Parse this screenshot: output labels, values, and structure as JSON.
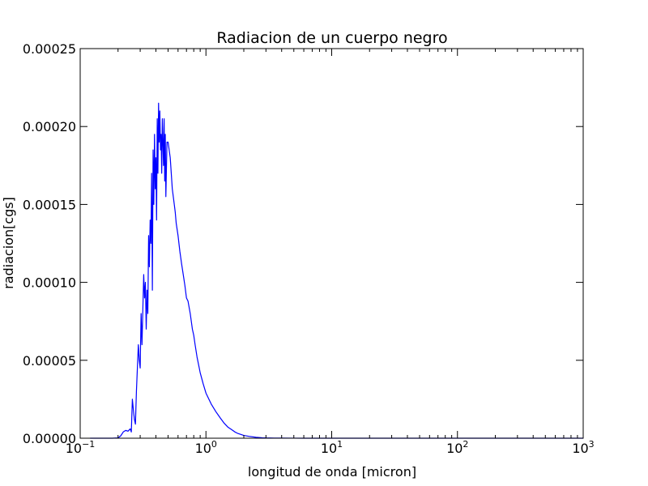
{
  "chart_data": {
    "type": "line",
    "title": "Radiacion de un cuerpo negro",
    "xlabel": "longitud de onda [micron]",
    "ylabel": "radiacion[cgs]",
    "x_scale": "log",
    "y_scale": "linear",
    "xlim": [
      0.1,
      1000
    ],
    "ylim": [
      0,
      0.00025
    ],
    "grid": false,
    "x_ticks": [
      {
        "value": 0.1,
        "base": "10",
        "exp": "−1"
      },
      {
        "value": 1,
        "base": "10",
        "exp": "0"
      },
      {
        "value": 10,
        "base": "10",
        "exp": "1"
      },
      {
        "value": 100,
        "base": "10",
        "exp": "2"
      },
      {
        "value": 1000,
        "base": "10",
        "exp": "3"
      }
    ],
    "y_ticks": [
      {
        "value": 0,
        "label": "0.00000"
      },
      {
        "value": 5e-05,
        "label": "0.00005"
      },
      {
        "value": 0.0001,
        "label": "0.00010"
      },
      {
        "value": 0.00015,
        "label": "0.00015"
      },
      {
        "value": 0.0002,
        "label": "0.00020"
      },
      {
        "value": 0.00025,
        "label": "0.00025"
      }
    ],
    "series": [
      {
        "color": "#0000ff",
        "x": [
          0.12,
          0.15,
          0.18,
          0.2,
          0.21,
          0.22,
          0.23,
          0.24,
          0.25,
          0.255,
          0.26,
          0.265,
          0.27,
          0.275,
          0.28,
          0.29,
          0.295,
          0.3,
          0.305,
          0.31,
          0.32,
          0.325,
          0.33,
          0.335,
          0.34,
          0.345,
          0.35,
          0.355,
          0.36,
          0.365,
          0.37,
          0.375,
          0.38,
          0.385,
          0.39,
          0.395,
          0.4,
          0.405,
          0.41,
          0.415,
          0.42,
          0.425,
          0.43,
          0.435,
          0.44,
          0.445,
          0.45,
          0.455,
          0.46,
          0.465,
          0.47,
          0.475,
          0.48,
          0.49,
          0.5,
          0.51,
          0.52,
          0.53,
          0.54,
          0.55,
          0.56,
          0.57,
          0.58,
          0.6,
          0.62,
          0.64,
          0.66,
          0.68,
          0.7,
          0.72,
          0.75,
          0.78,
          0.8,
          0.82,
          0.85,
          0.88,
          0.9,
          0.95,
          1.0,
          1.1,
          1.2,
          1.3,
          1.4,
          1.5,
          1.6,
          1.7,
          1.8,
          2.0,
          2.2,
          2.5,
          2.8,
          3.0,
          3.5,
          4.0,
          5.0,
          6.0,
          8.0,
          10,
          15,
          20,
          50,
          100,
          1000
        ],
        "y": [
          0,
          0,
          0,
          2e-07,
          1.5e-06,
          4e-06,
          5e-06,
          4.5e-06,
          6e-06,
          4e-06,
          2.5e-05,
          1.8e-05,
          1.2e-05,
          9e-06,
          3e-05,
          6e-05,
          5e-05,
          4.5e-05,
          8e-05,
          6e-05,
          0.000105,
          9e-05,
          0.0001,
          7e-05,
          9.5e-05,
          8e-05,
          0.00013,
          0.00011,
          0.00014,
          0.000125,
          0.00017,
          9.5e-05,
          0.000185,
          0.00015,
          0.000195,
          0.00016,
          0.00018,
          0.00014,
          0.000205,
          0.00017,
          0.000215,
          0.00019,
          0.00021,
          0.000185,
          0.000195,
          0.00017,
          0.000205,
          0.00019,
          0.000175,
          0.000205,
          0.000165,
          0.000195,
          0.000155,
          0.00019,
          0.00019,
          0.000185,
          0.00018,
          0.00017,
          0.00016,
          0.000155,
          0.00015,
          0.000145,
          0.000138,
          0.00013,
          0.00012,
          0.000112,
          0.000105,
          9.8e-05,
          9e-05,
          8.8e-05,
          8e-05,
          7e-05,
          6.6e-05,
          6e-05,
          5.2e-05,
          4.6e-05,
          4.2e-05,
          3.5e-05,
          2.9e-05,
          2.2e-05,
          1.7e-05,
          1.3e-05,
          9.5e-06,
          7e-06,
          5.5e-06,
          4e-06,
          3e-06,
          1.8e-06,
          1.2e-06,
          6e-07,
          3e-07,
          2e-07,
          1e-07,
          5e-08,
          2e-08,
          1e-08,
          0,
          0,
          0,
          0,
          0,
          0,
          0
        ]
      }
    ]
  }
}
